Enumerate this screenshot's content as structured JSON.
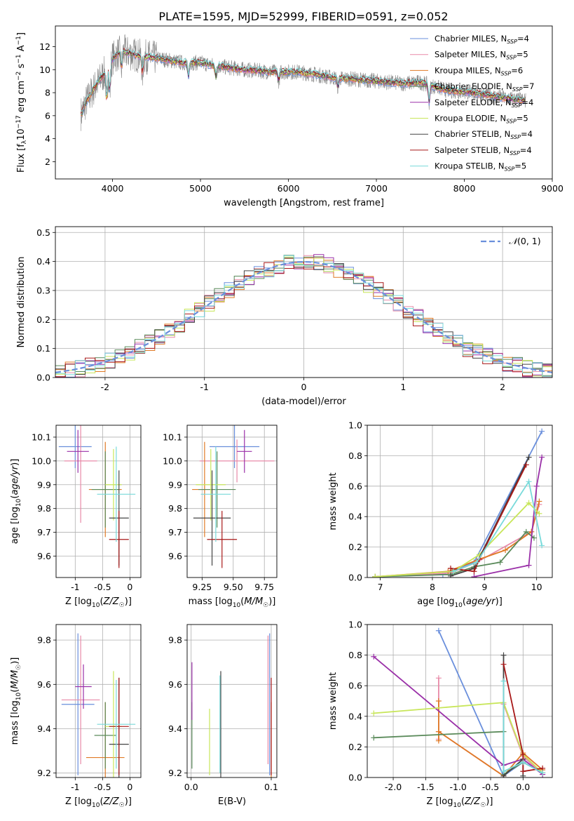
{
  "title": "PLATE=1595, MJD=52999, FIBERID=0591, z=0.052",
  "colors": {
    "chabrier_miles": "#6a8fdc",
    "salpeter_miles": "#e88aa8",
    "kroupa_miles": "#e07a26",
    "chabrier_elodie": "#5a8a5a",
    "salpeter_elodie": "#9a30a8",
    "kroupa_elodie": "#c8e65a",
    "chabrier_stelib": "#444444",
    "salpeter_stelib": "#a81818",
    "kroupa_stelib": "#78dada",
    "data_spectrum": "#888888"
  },
  "chart_data": [
    {
      "id": "spectrum",
      "type": "line",
      "xlabel": "wavelength [Angstrom, rest frame]",
      "ylabel": "Flux [f_λ 10^-17 erg cm^-2 s^-1 A^-1]",
      "xlim": [
        3350,
        9000
      ],
      "ylim": [
        0.5,
        13.8
      ],
      "xticks": [
        4000,
        5000,
        6000,
        7000,
        8000,
        9000
      ],
      "yticks": [
        2,
        4,
        6,
        8,
        10,
        12
      ],
      "grid": false,
      "legend_position": "top-right",
      "continuum": {
        "x": [
          3650,
          3700,
          3800,
          3900,
          4000,
          4100,
          4300,
          4500,
          4800,
          5000,
          5200,
          5500,
          5800,
          6100,
          6300,
          6500,
          6700,
          7000,
          7300,
          7500,
          7800,
          8100,
          8400,
          8700
        ],
        "y": [
          6.2,
          7.2,
          8.5,
          9.6,
          11.0,
          11.6,
          11.2,
          11.0,
          10.6,
          10.6,
          10.3,
          10.0,
          9.8,
          9.8,
          9.6,
          9.3,
          9.2,
          9.0,
          8.8,
          8.9,
          8.2,
          8.0,
          7.6,
          7.3
        ]
      },
      "series": [
        {
          "name": "Chabrier MILES, N_SSP=4",
          "color_key": "chabrier_miles"
        },
        {
          "name": "Salpeter MILES, N_SSP=5",
          "color_key": "salpeter_miles"
        },
        {
          "name": "Kroupa MILES, N_SSP=6",
          "color_key": "kroupa_miles"
        },
        {
          "name": "Chabrier ELODIE, N_SSP=7",
          "color_key": "chabrier_elodie"
        },
        {
          "name": "Salpeter ELODIE, N_SSP=4",
          "color_key": "salpeter_elodie"
        },
        {
          "name": "Kroupa ELODIE, N_SSP=5",
          "color_key": "kroupa_elodie"
        },
        {
          "name": "Chabrier STELIB, N_SSP=4",
          "color_key": "chabrier_stelib"
        },
        {
          "name": "Salpeter STELIB, N_SSP=4",
          "color_key": "salpeter_stelib"
        },
        {
          "name": "Kroupa STELIB, N_SSP=5",
          "color_key": "kroupa_stelib"
        }
      ]
    },
    {
      "id": "residuals",
      "type": "line",
      "xlabel": "(data-model)/error",
      "ylabel": "Normed distribution",
      "xlim": [
        -2.5,
        2.5
      ],
      "ylim": [
        0,
        0.52
      ],
      "xticks": [
        -2,
        -1,
        0,
        1,
        2
      ],
      "yticks": [
        0.0,
        0.1,
        0.2,
        0.3,
        0.4,
        0.5
      ],
      "grid": true,
      "legend_position": "top-right",
      "legend": "N(0,1)",
      "curve": {
        "name": "N(0,1)",
        "mean": 0,
        "sigma": 1
      },
      "hist_bins": {
        "start": -2.5,
        "width": 0.1,
        "count": 50
      }
    },
    {
      "id": "age_vs_Z",
      "type": "scatter",
      "xlabel": "Z [log10(Z/Z☉)]",
      "ylabel": "age [log10(age/yr)]",
      "xlim": [
        -1.35,
        0.2
      ],
      "ylim": [
        9.51,
        10.15
      ],
      "xticks": [
        -1,
        -0.5,
        0
      ],
      "yticks": [
        9.6,
        9.7,
        9.8,
        9.9,
        10.0,
        10.1
      ],
      "grid": true,
      "points": [
        {
          "color_key": "chabrier_miles",
          "x": -1.0,
          "y": 10.06,
          "xerr": 0.3,
          "yerr": 0.09
        },
        {
          "color_key": "salpeter_miles",
          "x": -0.9,
          "y": 10.0,
          "xerr": 0.3,
          "yerr": 0.26
        },
        {
          "color_key": "kroupa_miles",
          "x": -0.45,
          "y": 9.88,
          "xerr": 0.3,
          "yerr": 0.2
        },
        {
          "color_key": "chabrier_elodie",
          "x": -0.45,
          "y": 9.88,
          "xerr": 0.25,
          "yerr": 0.16
        },
        {
          "color_key": "salpeter_elodie",
          "x": -0.95,
          "y": 10.04,
          "xerr": 0.2,
          "yerr": 0.09
        },
        {
          "color_key": "kroupa_elodie",
          "x": -0.3,
          "y": 9.9,
          "xerr": 0.15,
          "yerr": 0.15
        },
        {
          "color_key": "chabrier_stelib",
          "x": -0.2,
          "y": 9.76,
          "xerr": 0.18,
          "yerr": 0.2
        },
        {
          "color_key": "salpeter_stelib",
          "x": -0.2,
          "y": 9.67,
          "xerr": 0.18,
          "yerr": 0.12
        },
        {
          "color_key": "kroupa_stelib",
          "x": -0.25,
          "y": 9.86,
          "xerr": 0.35,
          "yerr": 0.2
        }
      ]
    },
    {
      "id": "age_vs_mass",
      "type": "scatter",
      "xlabel": "mass [log10(M/M☉)]",
      "ylabel": "",
      "xlim": [
        9.13,
        9.85
      ],
      "ylim": [
        9.51,
        10.15
      ],
      "xticks": [
        9.25,
        9.5,
        9.75
      ],
      "yticks": [
        9.6,
        9.7,
        9.8,
        9.9,
        10.0,
        10.1
      ],
      "grid": true,
      "points": [
        {
          "color_key": "chabrier_miles",
          "x": 9.51,
          "y": 10.06,
          "xerr": 0.2,
          "yerr": 0.09
        },
        {
          "color_key": "salpeter_miles",
          "x": 9.53,
          "y": 10.0,
          "xerr": 0.3,
          "yerr": 0.09
        },
        {
          "color_key": "kroupa_miles",
          "x": 9.27,
          "y": 9.88,
          "xerr": 0.1,
          "yerr": 0.2
        },
        {
          "color_key": "chabrier_elodie",
          "x": 9.37,
          "y": 9.88,
          "xerr": 0.15,
          "yerr": 0.16
        },
        {
          "color_key": "salpeter_elodie",
          "x": 9.59,
          "y": 10.04,
          "xerr": 0.06,
          "yerr": 0.09
        },
        {
          "color_key": "kroupa_elodie",
          "x": 9.32,
          "y": 9.9,
          "xerr": 0.12,
          "yerr": 0.15
        },
        {
          "color_key": "chabrier_stelib",
          "x": 9.33,
          "y": 9.76,
          "xerr": 0.15,
          "yerr": 0.2
        },
        {
          "color_key": "salpeter_stelib",
          "x": 9.41,
          "y": 9.67,
          "xerr": 0.12,
          "yerr": 0.12
        },
        {
          "color_key": "kroupa_stelib",
          "x": 9.36,
          "y": 9.86,
          "xerr": 0.12,
          "yerr": 0.2
        }
      ]
    },
    {
      "id": "weight_vs_age",
      "type": "line",
      "xlabel": "age [log10(age/yr)]",
      "ylabel": "mass weight",
      "xlim": [
        6.75,
        10.3
      ],
      "ylim": [
        0,
        1.0
      ],
      "xticks": [
        7,
        8,
        9,
        10
      ],
      "yticks": [
        0.0,
        0.2,
        0.4,
        0.6,
        0.8,
        1.0
      ],
      "grid": true,
      "series": [
        {
          "color_key": "chabrier_miles",
          "x": [
            6.9,
            8.2,
            8.8,
            10.1
          ],
          "y": [
            0.005,
            0.02,
            0.1,
            0.96
          ]
        },
        {
          "color_key": "salpeter_miles",
          "x": [
            6.9,
            8.35,
            8.85,
            9.9,
            10.05
          ],
          "y": [
            0.005,
            0.03,
            0.1,
            0.3,
            0.48
          ]
        },
        {
          "color_key": "kroupa_miles",
          "x": [
            6.9,
            8.3,
            8.9,
            9.4,
            9.9,
            10.05
          ],
          "y": [
            0.005,
            0.04,
            0.12,
            0.18,
            0.3,
            0.5
          ]
        },
        {
          "color_key": "chabrier_elodie",
          "x": [
            6.9,
            8.35,
            8.8,
            9.3,
            9.8,
            9.95
          ],
          "y": [
            0.005,
            0.02,
            0.07,
            0.1,
            0.3,
            0.26
          ]
        },
        {
          "color_key": "salpeter_elodie",
          "x": [
            8.8,
            9.85,
            10.0,
            10.1
          ],
          "y": [
            0.005,
            0.08,
            0.6,
            0.79
          ]
        },
        {
          "color_key": "kroupa_elodie",
          "x": [
            6.9,
            8.4,
            8.9,
            9.85,
            10.05
          ],
          "y": [
            0.005,
            0.04,
            0.15,
            0.49,
            0.42
          ]
        },
        {
          "color_key": "chabrier_stelib",
          "x": [
            8.35,
            8.8,
            9.85,
            9.85
          ],
          "y": [
            0.01,
            0.06,
            0.79,
            0.79
          ]
        },
        {
          "color_key": "salpeter_stelib",
          "x": [
            8.35,
            8.8,
            8.9,
            9.8
          ],
          "y": [
            0.06,
            0.04,
            0.12,
            0.74
          ]
        },
        {
          "color_key": "kroupa_stelib",
          "x": [
            8.4,
            8.85,
            9.85,
            10.1
          ],
          "y": [
            0.04,
            0.1,
            0.63,
            0.21
          ]
        }
      ]
    },
    {
      "id": "mass_vs_Z",
      "type": "scatter",
      "xlabel": "Z [log10(Z/Z☉)]",
      "ylabel": "mass [log10(M/M☉)]",
      "xlim": [
        -1.35,
        0.2
      ],
      "ylim": [
        9.18,
        9.87
      ],
      "xticks": [
        -1,
        -0.5,
        0
      ],
      "yticks": [
        9.2,
        9.4,
        9.6,
        9.8
      ],
      "grid": true,
      "points": [
        {
          "color_key": "chabrier_miles",
          "x": -0.95,
          "y": 9.51,
          "xerr": 0.3,
          "yerr": 0.32
        },
        {
          "color_key": "salpeter_miles",
          "x": -0.9,
          "y": 9.53,
          "xerr": 0.35,
          "yerr": 0.29
        },
        {
          "color_key": "kroupa_miles",
          "x": -0.45,
          "y": 9.27,
          "xerr": 0.35,
          "yerr": 0.25
        },
        {
          "color_key": "chabrier_elodie",
          "x": -0.45,
          "y": 9.37,
          "xerr": 0.2,
          "yerr": 0.15
        },
        {
          "color_key": "salpeter_elodie",
          "x": -0.85,
          "y": 9.59,
          "xerr": 0.15,
          "yerr": 0.1
        },
        {
          "color_key": "kroupa_elodie",
          "x": -0.3,
          "y": 9.41,
          "xerr": 0.15,
          "yerr": 0.25
        },
        {
          "color_key": "chabrier_stelib",
          "x": -0.2,
          "y": 9.33,
          "xerr": 0.18,
          "yerr": 0.3
        },
        {
          "color_key": "salpeter_stelib",
          "x": -0.2,
          "y": 9.41,
          "xerr": 0.18,
          "yerr": 0.22
        },
        {
          "color_key": "kroupa_stelib",
          "x": -0.25,
          "y": 9.42,
          "xerr": 0.35,
          "yerr": 0.2
        }
      ]
    },
    {
      "id": "mass_vs_EBV",
      "type": "scatter",
      "xlabel": "E(B-V)",
      "ylabel": "",
      "xlim": [
        -0.005,
        0.107
      ],
      "ylim": [
        9.18,
        9.87
      ],
      "xticks": [
        0.0,
        0.1
      ],
      "yticks": [
        9.2,
        9.4,
        9.6,
        9.8
      ],
      "grid": true,
      "points": [
        {
          "color_key": "chabrier_miles",
          "x": 0.098,
          "y": 9.51,
          "xerr": 0,
          "yerr": 0.32
        },
        {
          "color_key": "salpeter_miles",
          "x": 0.096,
          "y": 9.53,
          "xerr": 0,
          "yerr": 0.29
        },
        {
          "color_key": "kroupa_miles",
          "x": 0.1,
          "y": 9.27,
          "xerr": 0,
          "yerr": 0.25
        },
        {
          "color_key": "chabrier_elodie",
          "x": 0.001,
          "y": 9.37,
          "xerr": 0,
          "yerr": 0.15
        },
        {
          "color_key": "salpeter_elodie",
          "x": 0.001,
          "y": 9.57,
          "xerr": 0,
          "yerr": 0.13
        },
        {
          "color_key": "kroupa_elodie",
          "x": 0.023,
          "y": 9.34,
          "xerr": 0,
          "yerr": 0.15
        },
        {
          "color_key": "chabrier_stelib",
          "x": 0.037,
          "y": 9.42,
          "xerr": 0,
          "yerr": 0.24
        },
        {
          "color_key": "salpeter_stelib",
          "x": 0.1,
          "y": 9.41,
          "xerr": 0,
          "yerr": 0.22
        },
        {
          "color_key": "kroupa_stelib",
          "x": 0.036,
          "y": 9.42,
          "xerr": 0,
          "yerr": 0.22
        }
      ]
    },
    {
      "id": "weight_vs_Z",
      "type": "line",
      "xlabel": "Z [log10(Z/Z☉)]",
      "ylabel": "mass weight",
      "xlim": [
        -2.4,
        0.45
      ],
      "ylim": [
        0,
        1.0
      ],
      "xticks": [
        -2.0,
        -1.5,
        -1.0,
        -0.5,
        0.0
      ],
      "yticks": [
        0.0,
        0.2,
        0.4,
        0.6,
        0.8,
        1.0
      ],
      "grid": true,
      "series": [
        {
          "color_key": "chabrier_miles",
          "x": [
            -1.3,
            -0.3,
            0.0,
            0.3
          ],
          "y": [
            0.96,
            0.01,
            0.1,
            0.03
          ]
        },
        {
          "color_key": "salpeter_miles",
          "x": [
            -1.3,
            -1.3,
            -1.3,
            -0.3,
            -0.3,
            0.0,
            0.3
          ],
          "y": [
            0.65,
            0.25,
            0.3,
            0.01,
            0.48,
            0.14,
            0.02
          ]
        },
        {
          "color_key": "kroupa_miles",
          "x": [
            -1.3,
            -1.3,
            -1.3,
            -0.3,
            0.0,
            0.3
          ],
          "y": [
            0.5,
            0.24,
            0.3,
            0.01,
            0.16,
            0.05
          ]
        },
        {
          "color_key": "chabrier_elodie",
          "x": [
            -2.3,
            -0.3,
            -0.3,
            0.0,
            0.3
          ],
          "y": [
            0.26,
            0.3,
            0.02,
            0.1,
            0.03
          ]
        },
        {
          "color_key": "salpeter_elodie",
          "x": [
            -2.3,
            -0.3,
            0.0,
            0.3
          ],
          "y": [
            0.79,
            0.08,
            0.12,
            0.02
          ]
        },
        {
          "color_key": "kroupa_elodie",
          "x": [
            -2.3,
            -0.3,
            0.0,
            0.3
          ],
          "y": [
            0.42,
            0.49,
            0.15,
            0.03
          ]
        },
        {
          "color_key": "chabrier_stelib",
          "x": [
            -0.3,
            -0.3,
            0.0,
            0.0
          ],
          "y": [
            0.8,
            0.01,
            0.12,
            0.01
          ]
        },
        {
          "color_key": "salpeter_stelib",
          "x": [
            -0.3,
            0.0,
            0.0,
            0.3
          ],
          "y": [
            0.74,
            0.15,
            0.04,
            0.06
          ]
        },
        {
          "color_key": "kroupa_stelib",
          "x": [
            -0.3,
            -0.3,
            0.0,
            0.3
          ],
          "y": [
            0.63,
            0.04,
            0.1,
            0.03
          ]
        }
      ]
    }
  ]
}
